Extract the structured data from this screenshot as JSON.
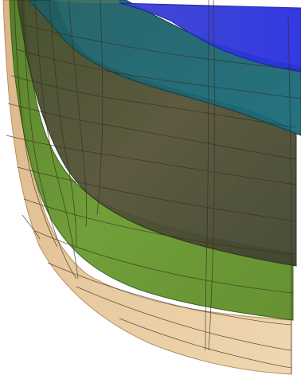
{
  "figure": {
    "description_visible_text": "",
    "layers": [
      {
        "name": "tan-layer",
        "color": "#e2c49a"
      },
      {
        "name": "green-layer",
        "color": "#5e8a2a"
      },
      {
        "name": "olive-dark-layer",
        "color": "#4a4d2c"
      },
      {
        "name": "teal-layer",
        "color": "#1f6e78"
      },
      {
        "name": "blue-layer",
        "color": "#2a34d8"
      }
    ],
    "colors": {
      "background": "#ffffff",
      "mesh_line": "#3a2a22",
      "tan_edge": "#c9a47a",
      "green_edge": "#2f5e1a"
    }
  }
}
